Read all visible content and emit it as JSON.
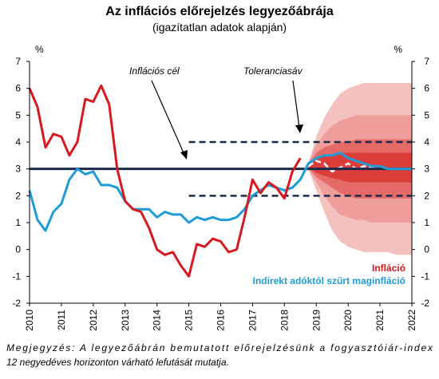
{
  "chart_data": {
    "type": "line",
    "title": "Az inflációs előrejelzés legyezőábrája",
    "subtitle": "(igazítatlan adatok alapján)",
    "y_unit_left": "%",
    "y_unit_right": "%",
    "ylim": [
      -2,
      7
    ],
    "y_ticks": [
      -2,
      -1,
      0,
      1,
      2,
      3,
      4,
      5,
      6,
      7
    ],
    "xlim": [
      2010,
      2022
    ],
    "x_ticks": [
      "2010",
      "2011",
      "2012",
      "2013",
      "2014",
      "2015",
      "2016",
      "2017",
      "2018",
      "2019",
      "2020",
      "2021",
      "2022"
    ],
    "inflation_target": {
      "label": "Inflációs cél",
      "value": 3,
      "x_from": 2010,
      "x_to": 2022,
      "color": "#1b2a4a"
    },
    "tolerance_band": {
      "label": "Toleranciasáv",
      "upper": 4,
      "lower": 2,
      "x_from": 2015,
      "x_to": 2022,
      "color": "#1b2a4a"
    },
    "series": [
      {
        "name": "Infláció",
        "color": "#d7191f",
        "x": [
          2010.0,
          2010.25,
          2010.5,
          2010.75,
          2011.0,
          2011.25,
          2011.5,
          2011.75,
          2012.0,
          2012.25,
          2012.5,
          2012.75,
          2013.0,
          2013.25,
          2013.5,
          2013.75,
          2014.0,
          2014.25,
          2014.5,
          2014.75,
          2015.0,
          2015.25,
          2015.5,
          2015.75,
          2016.0,
          2016.25,
          2016.5,
          2016.75,
          2017.0,
          2017.25,
          2017.5,
          2017.75,
          2018.0,
          2018.25,
          2018.5
        ],
        "values": [
          6.0,
          5.3,
          3.8,
          4.3,
          4.2,
          3.5,
          4.0,
          5.6,
          5.5,
          6.1,
          5.4,
          3.0,
          1.8,
          1.5,
          1.4,
          0.8,
          0.0,
          -0.2,
          -0.1,
          -0.6,
          -1.0,
          0.2,
          0.1,
          0.4,
          0.3,
          -0.1,
          0.0,
          1.2,
          2.6,
          2.1,
          2.5,
          2.3,
          1.9,
          2.9,
          3.4
        ]
      },
      {
        "name": "Indirekt adóktól szűrt maginfláció",
        "color": "#1e9cd7",
        "x": [
          2010.0,
          2010.25,
          2010.5,
          2010.75,
          2011.0,
          2011.25,
          2011.5,
          2011.75,
          2012.0,
          2012.25,
          2012.5,
          2012.75,
          2013.0,
          2013.25,
          2013.5,
          2013.75,
          2014.0,
          2014.25,
          2014.5,
          2014.75,
          2015.0,
          2015.25,
          2015.5,
          2015.75,
          2016.0,
          2016.25,
          2016.5,
          2016.75,
          2017.0,
          2017.25,
          2017.5,
          2017.75,
          2018.0,
          2018.25,
          2018.5,
          2018.75,
          2019.0,
          2019.25,
          2019.5,
          2019.75,
          2020.0,
          2020.25,
          2020.5,
          2020.75,
          2021.0,
          2021.25,
          2021.5,
          2021.75,
          2022.0
        ],
        "values": [
          2.2,
          1.1,
          0.7,
          1.4,
          1.7,
          2.6,
          3.0,
          2.8,
          2.9,
          2.4,
          2.4,
          2.3,
          1.8,
          1.5,
          1.5,
          1.5,
          1.2,
          1.4,
          1.3,
          1.3,
          1.0,
          1.2,
          1.1,
          1.2,
          1.1,
          1.1,
          1.2,
          1.5,
          2.0,
          2.2,
          2.4,
          2.3,
          2.2,
          2.3,
          2.6,
          3.2,
          3.4,
          3.5,
          3.5,
          3.6,
          3.4,
          3.3,
          3.2,
          3.1,
          3.1,
          3.0,
          3.0,
          3.0,
          3.0
        ]
      }
    ],
    "forecast_fan": {
      "x": [
        2018.75,
        2019.0,
        2019.25,
        2019.5,
        2019.75,
        2020.0,
        2020.25,
        2020.5,
        2020.75,
        2021.0,
        2021.25,
        2021.5,
        2021.75,
        2022.0
      ],
      "median": [
        3.1,
        3.3,
        3.2,
        2.9,
        3.05,
        3.2,
        3.0,
        3.1,
        3.05,
        3.0,
        3.0,
        3.0,
        3.0,
        3.0
      ],
      "bands": [
        {
          "lower": [
            3.0,
            2.2,
            1.4,
            0.7,
            0.3,
            0.1,
            0.0,
            -0.1,
            -0.1,
            -0.1,
            -0.1,
            -0.2,
            -0.2,
            -0.2
          ],
          "upper": [
            3.2,
            4.2,
            4.9,
            5.4,
            5.8,
            6.0,
            6.1,
            6.2,
            6.2,
            6.2,
            6.2,
            6.2,
            6.2,
            6.2
          ],
          "color": "#f5c1bf"
        },
        {
          "lower": [
            3.0,
            2.5,
            2.0,
            1.6,
            1.3,
            1.2,
            1.1,
            1.1,
            1.0,
            1.0,
            1.0,
            1.0,
            1.0,
            1.0
          ],
          "upper": [
            3.2,
            3.9,
            4.3,
            4.6,
            4.8,
            4.9,
            5.0,
            5.0,
            5.0,
            5.0,
            5.0,
            5.0,
            5.0,
            5.0
          ],
          "color": "#ef9d9a"
        },
        {
          "lower": [
            3.05,
            2.7,
            2.5,
            2.3,
            2.1,
            2.0,
            1.9,
            1.9,
            1.9,
            1.9,
            1.9,
            1.9,
            1.9,
            1.9
          ],
          "upper": [
            3.15,
            3.6,
            3.8,
            3.9,
            4.0,
            4.0,
            4.1,
            4.1,
            4.1,
            4.1,
            4.1,
            4.1,
            4.1,
            4.1
          ],
          "color": "#e56a67"
        },
        {
          "lower": [
            3.08,
            2.85,
            2.75,
            2.65,
            2.6,
            2.5,
            2.5,
            2.5,
            2.5,
            2.5,
            2.5,
            2.5,
            2.5,
            2.5
          ],
          "upper": [
            3.12,
            3.4,
            3.5,
            3.55,
            3.6,
            3.6,
            3.6,
            3.6,
            3.6,
            3.6,
            3.6,
            3.6,
            3.6,
            3.6
          ],
          "color": "#dc3c3a"
        }
      ]
    },
    "grid": false,
    "legend_position": "bottom-right"
  },
  "note": {
    "line1": "Megjegyzés: A legyezőábrán bemutatott előrejelzésünk a fogyasztóiár-index",
    "line2": "12 negyedéves horizonton várható lefutását mutatja."
  }
}
